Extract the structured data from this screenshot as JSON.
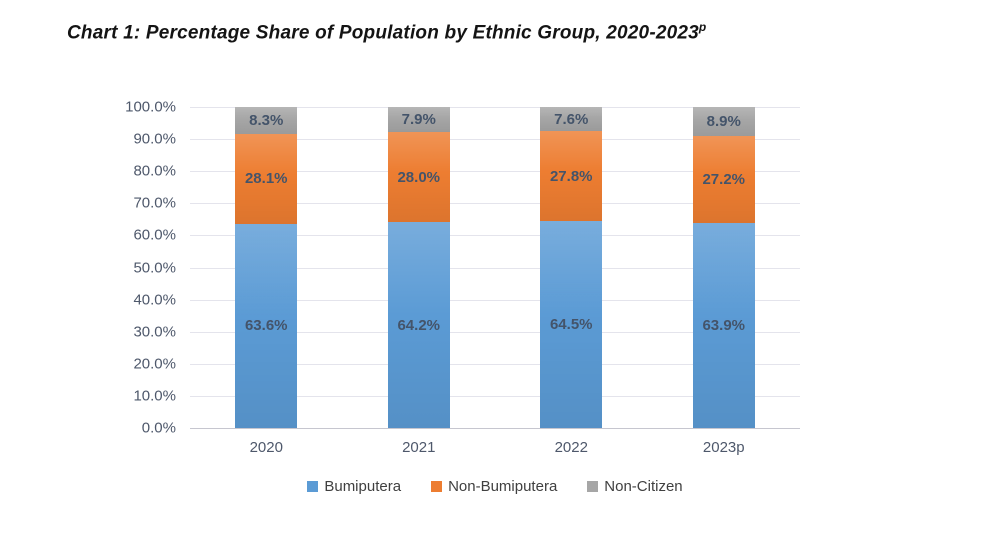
{
  "title": {
    "text": "Chart 1: Percentage Share of Population by Ethnic Group, 2020-2023",
    "superscript": "p"
  },
  "chart_data": {
    "type": "bar",
    "stacked": true,
    "orientation": "vertical",
    "categories": [
      "2020",
      "2021",
      "2022",
      "2023p"
    ],
    "series": [
      {
        "name": "Bumiputera",
        "color": "#5B9BD5",
        "values": [
          63.6,
          64.2,
          64.5,
          63.9
        ]
      },
      {
        "name": "Non-Bumiputera",
        "color": "#ED7D31",
        "values": [
          28.1,
          28.0,
          27.8,
          27.2
        ]
      },
      {
        "name": "Non-Citizen",
        "color": "#A6A6A6",
        "values": [
          8.3,
          7.9,
          7.6,
          8.9
        ]
      }
    ],
    "xlabel": "",
    "ylabel": "",
    "ylim": [
      0,
      100
    ],
    "ytick_step": 10,
    "ytick_labels": [
      "0.0%",
      "10.0%",
      "20.0%",
      "30.0%",
      "40.0%",
      "50.0%",
      "60.0%",
      "70.0%",
      "80.0%",
      "90.0%",
      "100.0%"
    ],
    "grid": true,
    "legend_position": "bottom",
    "value_label_suffix": "%"
  },
  "colors": {
    "gridline": "#E4E4EC",
    "axis_line": "#C6C6CF",
    "tick_label": "#4E586B",
    "data_label": "#44546A",
    "legend_text": "#404040",
    "title_text": "#141414"
  }
}
